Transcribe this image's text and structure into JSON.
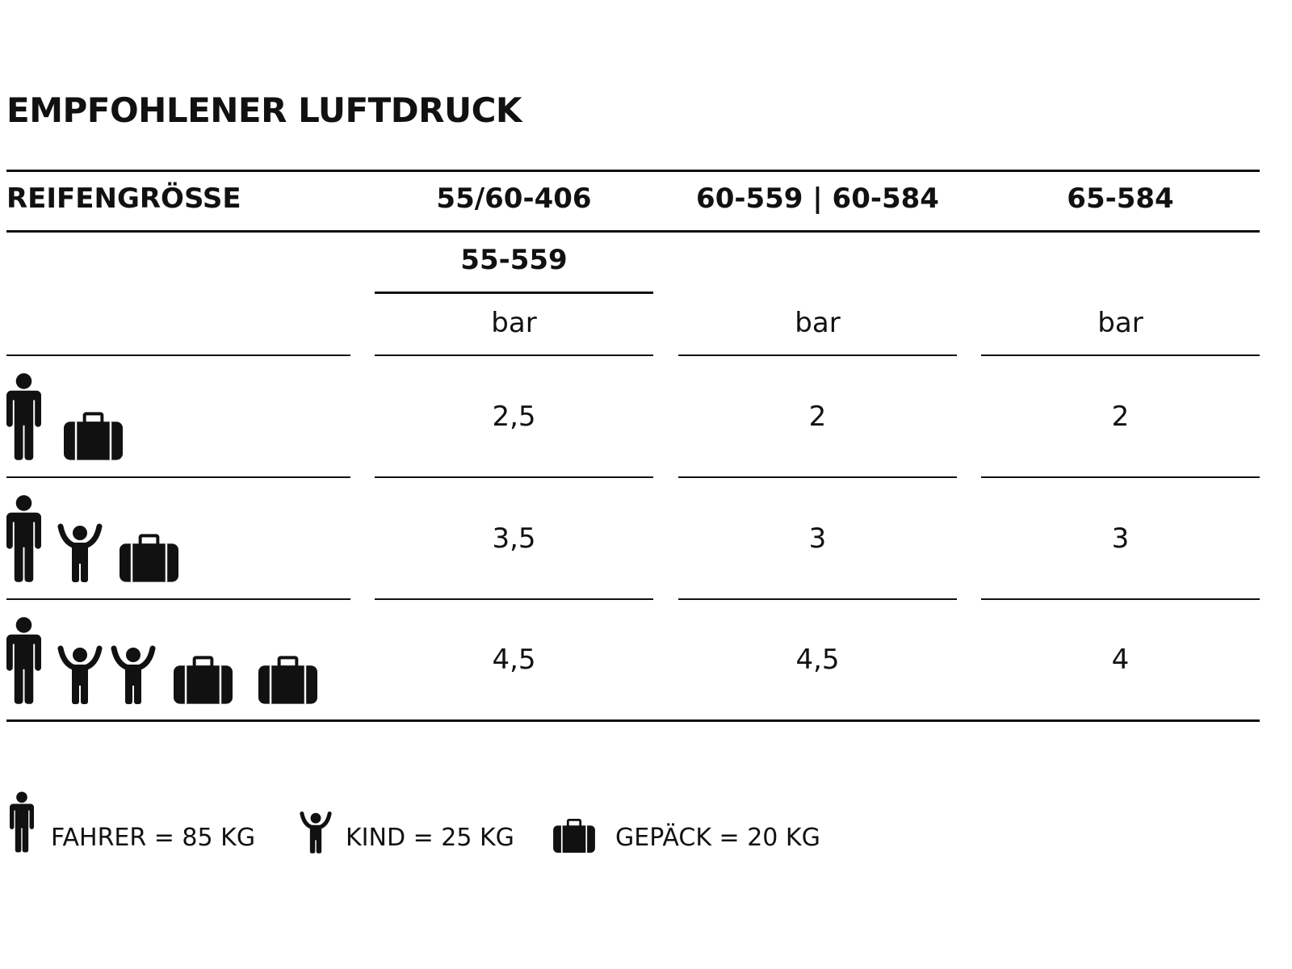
{
  "title": "EMPFOHLENER LUFTDRUCK",
  "header": {
    "label": "REIFENGRÖSSE",
    "columns": [
      "55/60-406",
      "60-559 | 60-584",
      "65-584"
    ],
    "column1_sub": "55-559",
    "units": [
      "bar",
      "bar",
      "bar"
    ]
  },
  "rows": [
    {
      "icons": [
        "adult-icon",
        "suitcase-icon"
      ],
      "values": [
        "2,5",
        "2",
        "2"
      ]
    },
    {
      "icons": [
        "adult-icon",
        "child-icon",
        "suitcase-icon"
      ],
      "values": [
        "3,5",
        "3",
        "3"
      ]
    },
    {
      "icons": [
        "adult-icon",
        "child-icon",
        "child-icon",
        "suitcase-icon",
        "suitcase-icon"
      ],
      "values": [
        "4,5",
        "4,5",
        "4"
      ]
    }
  ],
  "legend": [
    {
      "icon": "adult-icon",
      "label": "FAHRER = 85 KG"
    },
    {
      "icon": "child-icon",
      "label": "KIND = 25 KG"
    },
    {
      "icon": "suitcase-icon",
      "label": "GEPÄCK = 20 KG"
    }
  ]
}
